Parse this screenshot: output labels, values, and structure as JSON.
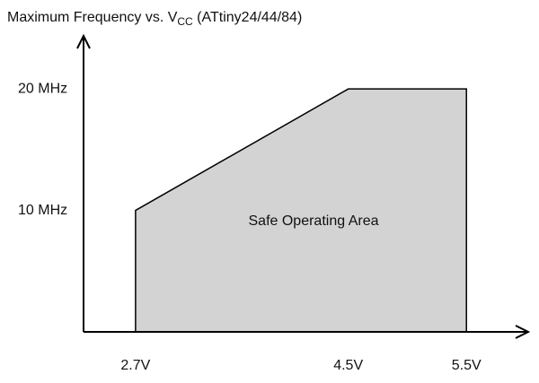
{
  "chart_data": {
    "type": "area",
    "title": {
      "text": "Maximum Frequency vs. V",
      "subscript": "CC",
      "suffix": " (ATtiny24/44/84)"
    },
    "annotation": "Safe Operating Area",
    "x": [
      2.7,
      4.5,
      5.5
    ],
    "values": [
      10,
      20,
      20
    ],
    "color": "#d3d3d3",
    "xlim": [
      2.26,
      6.0
    ],
    "ylim": [
      0,
      24
    ],
    "xticks": [
      {
        "value": 2.7,
        "label": "2.7V"
      },
      {
        "value": 4.5,
        "label": "4.5V"
      },
      {
        "value": 5.5,
        "label": "5.5V"
      }
    ],
    "yticks": [
      {
        "value": 10,
        "label": "10 MHz"
      },
      {
        "value": 20,
        "label": "20 MHz"
      }
    ],
    "grid": false
  }
}
